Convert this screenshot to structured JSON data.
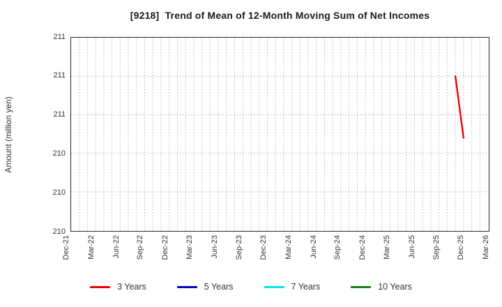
{
  "chart_data": {
    "type": "line",
    "title": "[9218]  Trend of Mean of 12-Month Moving Sum of Net Incomes",
    "ylabel": "Amount (million yen)",
    "x_axis": {
      "unit": "month",
      "start_label": "Dec-21",
      "end_label": "Mar-26",
      "months_total": 51,
      "tick_every_months": 3,
      "tick_labels": [
        "Dec-21",
        "Mar-22",
        "Jun-22",
        "Sep-22",
        "Dec-22",
        "Mar-23",
        "Jun-23",
        "Sep-23",
        "Dec-23",
        "Mar-24",
        "Jun-24",
        "Sep-24",
        "Dec-24",
        "Mar-25",
        "Jun-25",
        "Sep-25",
        "Dec-25",
        "Mar-26"
      ],
      "minor_grid": "monthly-dotted"
    },
    "y_axis": {
      "min": 210.0,
      "max": 211.0,
      "tick_step": 0.2,
      "tick_values": [
        211.0,
        210.8,
        210.6,
        210.4,
        210.2,
        210.0
      ],
      "tick_labels": [
        "211",
        "211",
        "211",
        "210",
        "210",
        "210"
      ],
      "grid": "dotted"
    },
    "series": [
      {
        "name": "3 Years",
        "color": "#ee0000",
        "points": [
          {
            "month": "Nov-25",
            "month_index": 47,
            "value": 210.8
          },
          {
            "month": "Dec-25",
            "month_index": 48,
            "value": 210.48
          }
        ]
      },
      {
        "name": "5 Years",
        "color": "#0000cc",
        "points": []
      },
      {
        "name": "7 Years",
        "color": "#00e5e5",
        "points": []
      },
      {
        "name": "10 Years",
        "color": "#1a7a1a",
        "points": []
      }
    ],
    "legend": {
      "position": "bottom-center",
      "entries": [
        "3 Years",
        "5 Years",
        "7 Years",
        "10 Years"
      ]
    },
    "grid_color": "#b3b3b3",
    "frame_color": "#262626"
  }
}
